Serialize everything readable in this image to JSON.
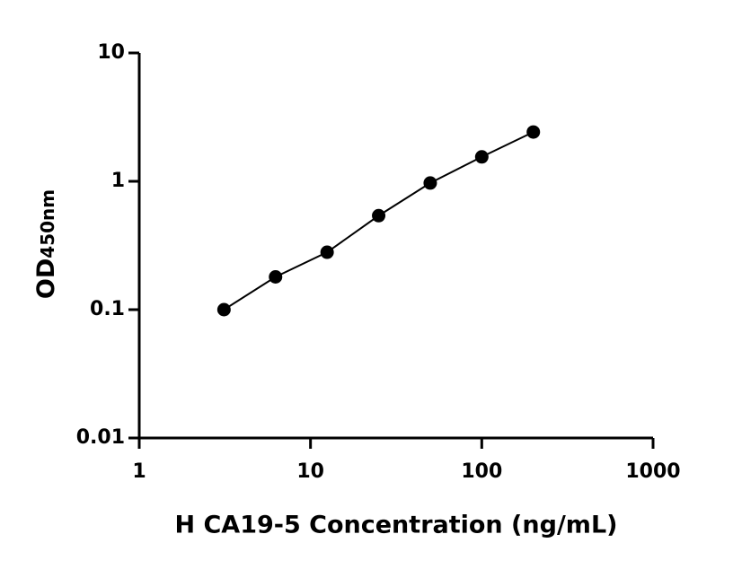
{
  "chart_data": {
    "type": "scatter",
    "x_label": "H CA19-5 Concentration (ng/mL)",
    "y_label": "OD",
    "y_label_subscript": "450nm",
    "series": [
      {
        "name": null,
        "color": "#000000",
        "x": [
          3.125,
          6.25,
          12.5,
          25,
          50,
          100,
          200
        ],
        "values": [
          0.1,
          0.18,
          0.28,
          0.54,
          0.97,
          1.55,
          2.42
        ]
      }
    ],
    "xlim": [
      1,
      1000
    ],
    "xticks": [
      1,
      10,
      100,
      1000
    ],
    "xscale": "log",
    "ylim": [
      0.01,
      10
    ],
    "yticks": [
      0.01,
      0.1,
      1,
      10
    ],
    "yscale": "log",
    "fit_line": true,
    "grid": false
  }
}
